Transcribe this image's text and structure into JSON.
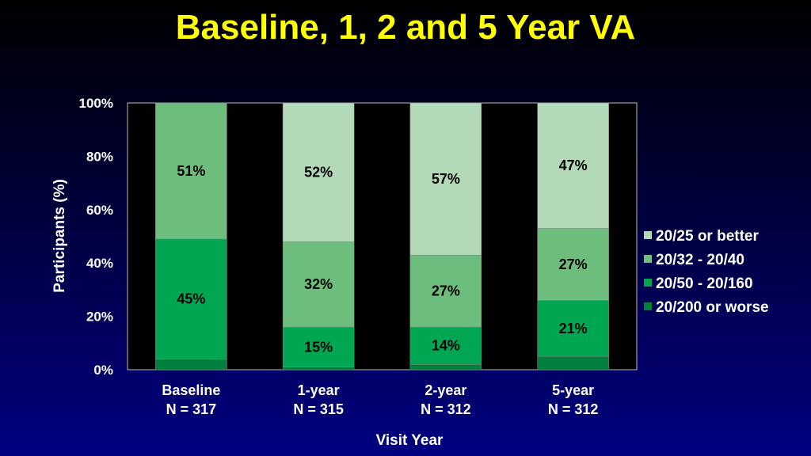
{
  "chart_data": {
    "type": "bar",
    "stacked": true,
    "title": "Baseline, 1, 2 and 5 Year VA",
    "xlabel": "Visit Year",
    "ylabel": "Participants (%)",
    "ylim": [
      0,
      100
    ],
    "yticks": [
      "0%",
      "20%",
      "40%",
      "60%",
      "80%",
      "100%"
    ],
    "categories": [
      [
        "Baseline",
        "N = 317"
      ],
      [
        "1-year",
        "N = 315"
      ],
      [
        "2-year",
        "N = 312"
      ],
      [
        "5-year",
        "N = 312"
      ]
    ],
    "series": [
      {
        "name": "20/200 or worse",
        "color": "#00803c",
        "values": [
          4,
          1,
          2,
          5
        ],
        "labels": [
          "",
          "",
          "",
          ""
        ]
      },
      {
        "name": "20/50 - 20/160",
        "color": "#00a651",
        "values": [
          45,
          15,
          14,
          21
        ],
        "labels": [
          "45%",
          "15%",
          "14%",
          "21%"
        ]
      },
      {
        "name": "20/32 - 20/40",
        "color": "#6dbe7d",
        "values": [
          51,
          32,
          27,
          27
        ],
        "labels": [
          "51%",
          "32%",
          "27%",
          "27%"
        ]
      },
      {
        "name": "20/25 or better",
        "color": "#b3dab8",
        "values": [
          0,
          52,
          57,
          47
        ],
        "labels": [
          "",
          "52%",
          "57%",
          "47%"
        ]
      }
    ],
    "legend": "right",
    "plot_background": "#000000"
  }
}
